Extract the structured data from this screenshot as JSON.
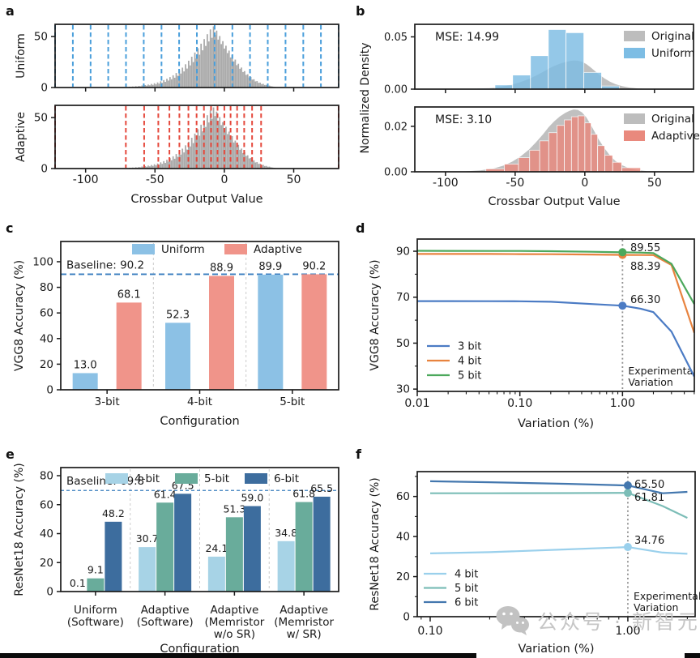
{
  "figure_title": "",
  "watermark": {
    "text": "公众号 · 新智元",
    "icon": "wechat-icon",
    "color": "#c6c6c6"
  },
  "bottom_bar_color": "#0b0b0b",
  "chart_data": [
    {
      "id": "a",
      "letter": "a",
      "type": "histogram",
      "xlabel": "Crossbar Output Value",
      "xticks": [
        -100,
        -50,
        0,
        50
      ],
      "yticks": [
        0,
        50
      ],
      "xlim": [
        -122,
        82.4
      ],
      "ylim": [
        0,
        62
      ],
      "subplots": [
        {
          "ylabel": "Uniform",
          "levels_color": "#4A9FDB"
        },
        {
          "ylabel": "Adaptive",
          "levels_color": "#E5493D"
        }
      ],
      "uniform_levels": [
        -122,
        -109.2,
        -96.4,
        -83.7,
        -70.9,
        -58.1,
        -45.3,
        -32.6,
        -19.8,
        -7,
        5.8,
        18.5,
        31.3,
        44.1,
        56.9,
        69.6,
        82.4
      ],
      "adaptive_levels": [
        -122,
        -71,
        -57.8,
        -47.6,
        -39.6,
        -32.4,
        -25.9,
        -20,
        -14.7,
        -9.6,
        -4.9,
        0,
        4.5,
        9.2,
        14.3,
        20,
        26.5,
        82.4
      ],
      "hist": {
        "x0": -75,
        "dx": 1.12,
        "color": "#A9A9A9",
        "heights": [
          0.4,
          0.2,
          0.5,
          0.3,
          0.6,
          0.4,
          0.8,
          0.5,
          1.0,
          0.7,
          1.3,
          0.9,
          1.6,
          1.2,
          2.0,
          1.5,
          2.4,
          1.8,
          2.9,
          2.2,
          3.5,
          2.6,
          4.2,
          3.1,
          5.0,
          3.8,
          6.1,
          4.6,
          7.3,
          5.5,
          8.6,
          6.8,
          10.2,
          8.1,
          12.0,
          9.6,
          14.2,
          11.5,
          16.8,
          13.7,
          19.5,
          15.8,
          22.8,
          18.6,
          26.3,
          21.7,
          30.2,
          25.0,
          34.3,
          28.5,
          38.6,
          32.2,
          43.0,
          36.5,
          47.5,
          40.8,
          52.3,
          45.2,
          57.0,
          48.8,
          60.0,
          51.5,
          55.8,
          47.0,
          50.5,
          42.6,
          45.5,
          38.2,
          41.0,
          33.8,
          36.2,
          29.5,
          31.8,
          25.6,
          27.4,
          21.9,
          23.3,
          18.4,
          19.6,
          15.2,
          16.1,
          12.4,
          13.0,
          9.9,
          10.4,
          7.8,
          8.1,
          6.0,
          6.3,
          4.6,
          4.8,
          3.4,
          3.6,
          2.5,
          2.6,
          1.8,
          1.9,
          1.3,
          1.0,
          0.7,
          0.5
        ]
      }
    },
    {
      "id": "b",
      "letter": "b",
      "type": "histogram",
      "ylabel": "Normalized Density",
      "xlabel": "Crossbar Output Value",
      "xticks": [
        -100,
        -50,
        0,
        50
      ],
      "xlim": [
        -122,
        78
      ],
      "density": {
        "color": "#BDBDBD",
        "points": [
          [
            -85,
            0.0002
          ],
          [
            -75,
            0.0006
          ],
          [
            -65,
            0.0015
          ],
          [
            -58,
            0.0028
          ],
          [
            -52,
            0.0045
          ],
          [
            -46,
            0.0068
          ],
          [
            -40,
            0.0098
          ],
          [
            -35,
            0.013
          ],
          [
            -30,
            0.0165
          ],
          [
            -26,
            0.0196
          ],
          [
            -22,
            0.0222
          ],
          [
            -18,
            0.0243
          ],
          [
            -14,
            0.0259
          ],
          [
            -11,
            0.0268
          ],
          [
            -8,
            0.0274
          ],
          [
            -5,
            0.0272
          ],
          [
            -2,
            0.0261
          ],
          [
            1,
            0.024
          ],
          [
            4,
            0.021
          ],
          [
            7,
            0.0176
          ],
          [
            10,
            0.0142
          ],
          [
            14,
            0.0104
          ],
          [
            18,
            0.0072
          ],
          [
            22,
            0.0047
          ],
          [
            27,
            0.0028
          ],
          [
            32,
            0.0015
          ],
          [
            38,
            0.0007
          ],
          [
            45,
            0.0003
          ],
          [
            55,
            0.0001
          ]
        ]
      },
      "subplots": [
        {
          "mse_label": "MSE: 14.99",
          "mse_color": "#4AA2DE",
          "ylim": [
            0,
            0.062
          ],
          "ytick_vals": [
            0,
            0.05
          ],
          "ytick_labels": [
            "0.00",
            "0.05"
          ],
          "legend": [
            {
              "label": "Original",
              "color": "#BDBDBD"
            },
            {
              "label": "Uniform",
              "color": "#7DBDE4"
            }
          ],
          "bars": {
            "color": "#7DBDE4",
            "edges": [
              -90,
              -77.3,
              -64.5,
              -51.8,
              -39,
              -26.2,
              -13.5,
              -0.7,
              12,
              24.8
            ],
            "heights": [
              0.0003,
              0.0008,
              0.004,
              0.0135,
              0.032,
              0.057,
              0.054,
              0.016,
              0.003
            ]
          }
        },
        {
          "mse_label": "MSE: 3.10",
          "mse_color": "#E0463A",
          "ylim": [
            0,
            0.0285
          ],
          "ytick_vals": [
            0,
            0.02
          ],
          "ytick_labels": [
            "0.00",
            "0.02"
          ],
          "legend": [
            {
              "label": "Original",
              "color": "#BDBDBD"
            },
            {
              "label": "Adaptive",
              "color": "#E9897D"
            }
          ],
          "bars": {
            "color": "#E9897D",
            "edges": [
              -71,
              -57.8,
              -47.6,
              -39.6,
              -32.4,
              -25.9,
              -20,
              -14.7,
              -9.6,
              -4.9,
              0,
              4.5,
              9.2,
              14.3,
              20,
              26.5,
              40
            ],
            "heights": [
              0.0013,
              0.0034,
              0.0062,
              0.0095,
              0.0136,
              0.0172,
              0.0204,
              0.0228,
              0.0242,
              0.0246,
              0.0215,
              0.0165,
              0.0115,
              0.0073,
              0.0042,
              0.0018
            ]
          }
        }
      ]
    },
    {
      "id": "c",
      "letter": "c",
      "type": "bar",
      "ylabel": "VGG8 Accuracy (%)",
      "xlabel": "Configuration",
      "categories": [
        "3-bit",
        "4-bit",
        "5-bit"
      ],
      "series": [
        {
          "name": "Uniform",
          "color": "#8CC1E5",
          "values": [
            13.0,
            52.3,
            89.9
          ]
        },
        {
          "name": "Adaptive",
          "color": "#F0948A",
          "values": [
            68.1,
            88.9,
            90.2
          ]
        }
      ],
      "baseline": {
        "label": "Baseline: 90.2",
        "value": 90.2,
        "color": "#3A7EBF"
      },
      "yticks": [
        0,
        20,
        40,
        60,
        80,
        100
      ],
      "ylim": [
        0,
        115.8
      ]
    },
    {
      "id": "d",
      "letter": "d",
      "type": "line",
      "ylabel": "VGG8 Accuracy (%)",
      "xlabel": "Variation (%)",
      "xscale": "log",
      "xlim": [
        0.01,
        5.01
      ],
      "xtick_vals": [
        0.01,
        0.1,
        1.0
      ],
      "xtick_labels": [
        "0.01",
        "0.10",
        "1.00"
      ],
      "yticks": [
        30,
        50,
        70,
        90
      ],
      "yminor": [
        40,
        60,
        80
      ],
      "ylim": [
        29,
        95.3
      ],
      "x": [
        0.01,
        0.02,
        0.05,
        0.1,
        0.2,
        0.5,
        1.0,
        1.5,
        2.0,
        3.0,
        5.0
      ],
      "series": [
        {
          "name": "3 bit",
          "color": "#4B7BC4",
          "values": [
            68.3,
            68.3,
            68.25,
            68.2,
            68.0,
            67.0,
            66.3,
            65.0,
            63.5,
            55.0,
            35.5
          ],
          "annotation": "66.30"
        },
        {
          "name": "4 bit",
          "color": "#E8833F",
          "values": [
            88.8,
            88.8,
            88.8,
            88.75,
            88.7,
            88.55,
            88.39,
            88.35,
            88.3,
            84.0,
            54.5
          ],
          "annotation": "88.39"
        },
        {
          "name": "5 bit",
          "color": "#4CA85C",
          "values": [
            90.2,
            90.15,
            90.1,
            90.1,
            90.0,
            89.75,
            89.55,
            89.4,
            89.2,
            84.5,
            67.0
          ],
          "annotation": "89.55"
        }
      ],
      "marker_x": 1.0,
      "vline": {
        "x": 1.0,
        "label_line1": "Experimental",
        "label_line2": "Variation",
        "color": "#909090"
      }
    },
    {
      "id": "e",
      "letter": "e",
      "type": "bar",
      "ylabel": "ResNet18 Accuracy (%)",
      "xlabel": "Configuration",
      "categories": [
        [
          "Uniform",
          "(Software)"
        ],
        [
          "Adaptive",
          "(Software)"
        ],
        [
          "Adaptive",
          "(Memristor",
          "w/o SR)"
        ],
        [
          "Adaptive",
          "(Memristor",
          "w/ SR)"
        ]
      ],
      "series": [
        {
          "name": "4-bit",
          "color": "#A7D3E6",
          "values": [
            0.1,
            30.7,
            24.1,
            34.8
          ]
        },
        {
          "name": "5-bit",
          "color": "#69AC9B",
          "values": [
            9.1,
            61.4,
            51.3,
            61.8
          ]
        },
        {
          "name": "6-bit",
          "color": "#3D6D9E",
          "values": [
            48.2,
            67.5,
            59.0,
            65.5
          ]
        }
      ],
      "baseline": {
        "label": "Baseline: 69.8",
        "value": 69.8,
        "color": "#3A7EBF"
      },
      "yticks": [
        0,
        20,
        40,
        60,
        80
      ],
      "ylim": [
        0,
        85.6
      ]
    },
    {
      "id": "f",
      "letter": "f",
      "type": "line",
      "ylabel": "ResNet18 Accuracy (%)",
      "xlabel": "Variation (%)",
      "xscale": "log",
      "xlim": [
        0.086,
        2.19
      ],
      "xtick_vals": [
        0.1,
        1.0
      ],
      "xtick_labels": [
        "0.10",
        "1.00"
      ],
      "yticks": [
        0,
        20,
        40,
        60
      ],
      "yminor": [
        10,
        30,
        50,
        70
      ],
      "ylim": [
        0,
        72.4
      ],
      "x": [
        0.1,
        0.2,
        0.5,
        1.0,
        1.5,
        2.0
      ],
      "series": [
        {
          "name": "4 bit",
          "color": "#9AD0EC",
          "values": [
            31.6,
            32.2,
            33.6,
            34.76,
            32.0,
            31.4
          ],
          "annotation": "34.76"
        },
        {
          "name": "5 bit",
          "color": "#7CBDB7",
          "values": [
            61.6,
            61.6,
            61.7,
            61.81,
            55.2,
            49.3
          ],
          "annotation": "61.81"
        },
        {
          "name": "6 bit",
          "color": "#4377AE",
          "values": [
            67.6,
            67.1,
            66.3,
            65.5,
            61.6,
            62.3
          ],
          "annotation": "65.50"
        }
      ],
      "marker_x": 1.0,
      "vline": {
        "x": 1.0,
        "label_line1": "Experimental",
        "label_line2": "Variation",
        "color": "#909090"
      }
    }
  ]
}
